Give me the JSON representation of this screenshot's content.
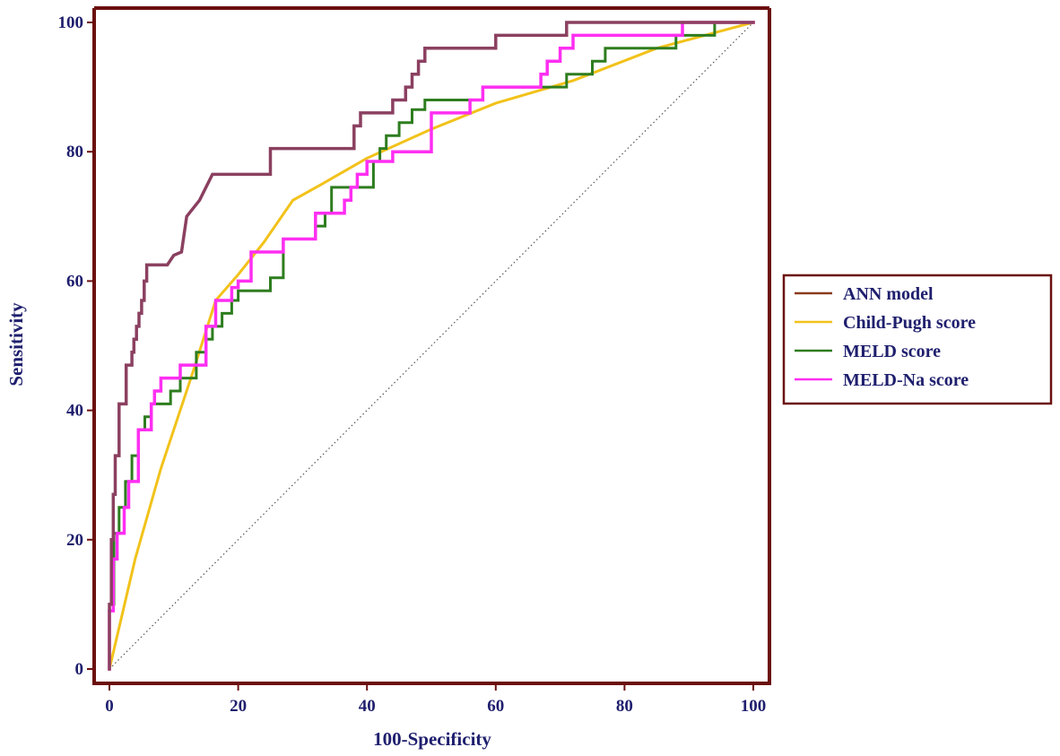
{
  "chart_data": {
    "type": "line",
    "title": "",
    "xlabel": "100-Specificity",
    "ylabel": "Sensitivity",
    "xlim": [
      0,
      100
    ],
    "ylim": [
      0,
      100
    ],
    "xticks": [
      "0",
      "20",
      "40",
      "60",
      "80",
      "100"
    ],
    "yticks": [
      "0",
      "20",
      "40",
      "60",
      "80",
      "100"
    ],
    "legend_position": "right",
    "colors": {
      "frame": "#6b0f0f",
      "text": "#1f1f6e",
      "reference": "#555555"
    },
    "reference_line": {
      "name": "chance diagonal",
      "x": [
        0,
        100
      ],
      "y": [
        0,
        100
      ]
    },
    "series": [
      {
        "name": "ANN model",
        "legend_color": "#8b3a1a",
        "color": "#8b4060",
        "width": 3.5,
        "x": [
          0,
          0,
          0.3,
          0.3,
          0.6,
          0.6,
          0.9,
          0.9,
          1.5,
          1.5,
          2.6,
          2.6,
          3.5,
          3.5,
          3.8,
          3.8,
          4.2,
          4.2,
          4.6,
          4.6,
          5,
          5,
          5.4,
          5.4,
          5.8,
          5.8,
          9,
          10,
          10,
          11.2,
          11.2,
          12,
          12,
          14,
          14,
          16,
          16,
          25,
          25,
          38,
          38,
          39,
          39,
          44,
          44,
          46,
          46,
          47,
          47,
          48,
          48,
          49,
          49,
          60,
          60,
          71,
          71,
          100
        ],
        "y": [
          0,
          10,
          10,
          20,
          20,
          27,
          27,
          33,
          33,
          41,
          41,
          47,
          47,
          49,
          49,
          51,
          51,
          53,
          53,
          55,
          55,
          57,
          57,
          60,
          60,
          62.5,
          62.5,
          64,
          64,
          64.5,
          64.5,
          70,
          70,
          72.5,
          72.5,
          76.5,
          76.5,
          76.5,
          80.5,
          80.5,
          84,
          84,
          86,
          86,
          88,
          88,
          90,
          90,
          92,
          92,
          94,
          94,
          96,
          96,
          98,
          98,
          100,
          100
        ]
      },
      {
        "name": "Child-Pugh score",
        "legend_color": "#f2c21a",
        "color": "#f2c21a",
        "width": 3,
        "x": [
          0,
          4,
          8,
          13,
          16.5,
          20,
          24,
          28.5,
          33,
          40,
          50,
          60,
          72,
          85,
          100
        ],
        "y": [
          0,
          17,
          31,
          46,
          57,
          61,
          66,
          72.5,
          75,
          79,
          83.5,
          87.5,
          91,
          96,
          100
        ]
      },
      {
        "name": "MELD score",
        "legend_color": "#2e7d1f",
        "color": "#2e7d1f",
        "width": 3,
        "x": [
          0,
          0,
          0.7,
          0.7,
          1.5,
          1.5,
          2.5,
          2.5,
          3.5,
          3.5,
          4.5,
          4.5,
          5.5,
          5.5,
          6.5,
          6.5,
          9.5,
          9.5,
          11,
          11,
          13.5,
          13.5,
          15,
          15,
          16,
          16,
          17.5,
          17.5,
          19,
          19,
          20,
          20,
          22,
          22,
          25,
          25,
          27,
          27,
          30,
          30,
          32,
          32,
          33.5,
          33.5,
          34.5,
          34.5,
          38,
          38,
          41,
          41,
          42,
          42,
          43,
          43,
          45,
          45,
          47,
          47,
          49,
          49,
          58,
          58,
          71,
          71,
          75,
          75,
          77,
          77,
          88,
          88,
          94,
          94,
          100
        ],
        "y": [
          0,
          10,
          10,
          21,
          21,
          25,
          25,
          29,
          29,
          33,
          33,
          37,
          37,
          39,
          39,
          41,
          41,
          43,
          43,
          45,
          45,
          49,
          49,
          51,
          51,
          53,
          53,
          55,
          55,
          57,
          57,
          58.5,
          58.5,
          58.5,
          58.5,
          60.5,
          60.5,
          66.5,
          66.5,
          66.5,
          66.5,
          68.5,
          68.5,
          70.5,
          70.5,
          74.5,
          74.5,
          74.5,
          74.5,
          78.5,
          78.5,
          80.5,
          80.5,
          82.5,
          82.5,
          84.5,
          84.5,
          86.5,
          86.5,
          88,
          88,
          90,
          90,
          92,
          92,
          94,
          94,
          96,
          96,
          98,
          98,
          100,
          100
        ]
      },
      {
        "name": "MELD-Na score",
        "legend_color": "#ff2ef2",
        "color": "#ff2ef2",
        "width": 3.5,
        "x": [
          0,
          0,
          0.6,
          0.6,
          1.2,
          1.2,
          2.3,
          2.3,
          3,
          3,
          4.5,
          4.5,
          6.5,
          6.5,
          7,
          7,
          8,
          8,
          9,
          9,
          11,
          11,
          15,
          15,
          16.5,
          16.5,
          19,
          19,
          20,
          20,
          22,
          22,
          27,
          27,
          32,
          32,
          36.5,
          36.5,
          37.5,
          37.5,
          38.5,
          38.5,
          40,
          40,
          44,
          44,
          50,
          50,
          56,
          56,
          58,
          58,
          67,
          67,
          68,
          68,
          70,
          70,
          72,
          72,
          89,
          89,
          100
        ],
        "y": [
          0,
          9,
          9,
          17,
          17,
          21,
          21,
          25,
          25,
          29,
          29,
          37,
          37,
          41,
          41,
          43,
          43,
          45,
          45,
          45,
          45,
          47,
          47,
          53,
          53,
          57,
          57,
          59,
          59,
          60,
          60,
          64.5,
          64.5,
          66.5,
          66.5,
          70.5,
          70.5,
          72.5,
          72.5,
          74.5,
          74.5,
          76.5,
          76.5,
          78.5,
          78.5,
          80,
          80,
          86,
          86,
          88,
          88,
          90,
          90,
          92,
          92,
          94,
          94,
          96,
          96,
          98,
          98,
          100,
          100
        ]
      }
    ]
  }
}
